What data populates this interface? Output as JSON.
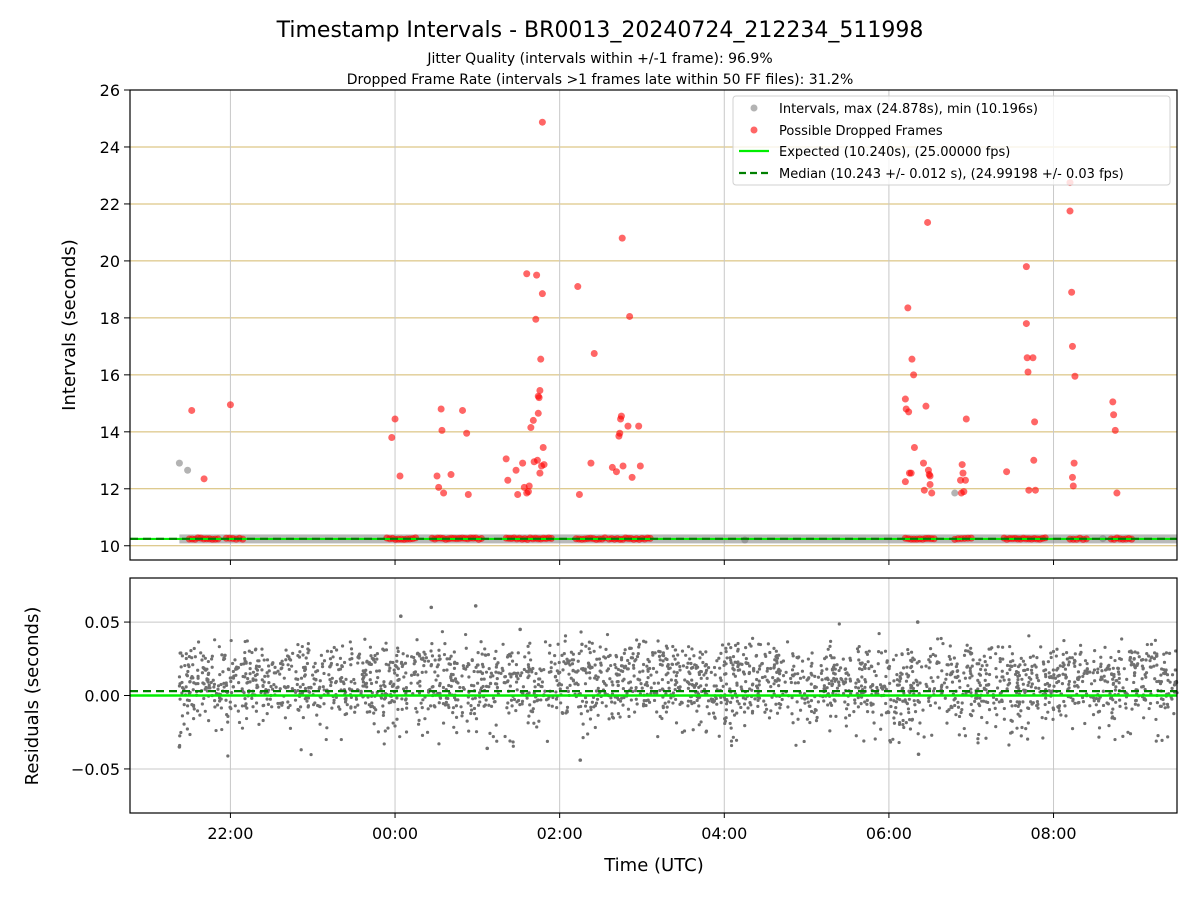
{
  "figure": {
    "title": "Timestamp Intervals - BR0013_20240724_212234_511998",
    "subtitle_1": "Jitter Quality (intervals within +/-1 frame): 96.9%",
    "subtitle_2": "Dropped Frame Rate (intervals >1 frames late within 50 FF files): 31.2%"
  },
  "chart_data": [
    {
      "type": "scatter",
      "ylabel": "Intervals (seconds)",
      "xlabel": "",
      "ylim": [
        9.5,
        26
      ],
      "yticks": [
        10,
        12,
        14,
        16,
        18,
        20,
        22,
        24,
        26
      ],
      "xlim_hours": [
        -3.22,
        9.5
      ],
      "xticks": [
        {
          "h": -2,
          "label": "22:00"
        },
        {
          "h": 0,
          "label": "00:00"
        },
        {
          "h": 2,
          "label": "02:00"
        },
        {
          "h": 4,
          "label": "04:00"
        },
        {
          "h": 6,
          "label": "06:00"
        },
        {
          "h": 8,
          "label": "08:00"
        }
      ],
      "grid": true,
      "legend_position": "top-right",
      "colors": {
        "intervals": "#808080",
        "dropped": "#ff0000",
        "expected": "#00ee00",
        "median": "#008000",
        "hgrid": "#d4b96a",
        "vgrid": "#c8c8c8"
      },
      "series": [
        {
          "name": "Intervals, max (24.878s), min (10.196s)",
          "kind": "points",
          "band": {
            "from_h": -2.62,
            "to_h": 9.5,
            "y": 10.24
          },
          "points": [
            [
              -2.62,
              12.9
            ],
            [
              -2.52,
              12.65
            ],
            [
              4.25,
              10.2
            ],
            [
              6.8,
              11.85
            ],
            [
              8.6,
              10.25
            ]
          ]
        },
        {
          "name": "Possible Dropped Frames",
          "kind": "points",
          "cluster_ranges_h": [
            [
              -2.5,
              -2.15
            ],
            [
              -2.05,
              -1.85
            ],
            [
              -0.1,
              0.25
            ],
            [
              0.45,
              1.05
            ],
            [
              1.35,
              1.9
            ],
            [
              2.2,
              2.55
            ],
            [
              2.6,
              3.1
            ],
            [
              6.2,
              6.55
            ],
            [
              6.8,
              7.0
            ],
            [
              7.4,
              7.9
            ],
            [
              8.2,
              8.4
            ],
            [
              8.7,
              8.95
            ]
          ],
          "cluster_y": 10.25,
          "points": [
            [
              -2.47,
              14.75
            ],
            [
              -2.32,
              12.35
            ],
            [
              -2.0,
              14.95
            ],
            [
              -0.04,
              13.8
            ],
            [
              0.0,
              14.45
            ],
            [
              0.06,
              12.45
            ],
            [
              0.51,
              12.45
            ],
            [
              0.53,
              12.05
            ],
            [
              0.56,
              14.8
            ],
            [
              0.57,
              14.05
            ],
            [
              0.59,
              11.85
            ],
            [
              0.68,
              12.5
            ],
            [
              0.82,
              14.75
            ],
            [
              0.87,
              13.95
            ],
            [
              0.89,
              11.8
            ],
            [
              1.35,
              13.05
            ],
            [
              1.37,
              12.3
            ],
            [
              1.47,
              12.65
            ],
            [
              1.49,
              11.8
            ],
            [
              1.55,
              12.9
            ],
            [
              1.57,
              12.05
            ],
            [
              1.6,
              11.85
            ],
            [
              1.62,
              11.9
            ],
            [
              1.63,
              12.1
            ],
            [
              1.6,
              19.55
            ],
            [
              1.65,
              14.15
            ],
            [
              1.68,
              14.4
            ],
            [
              1.69,
              12.95
            ],
            [
              1.71,
              17.95
            ],
            [
              1.72,
              19.5
            ],
            [
              1.74,
              14.65
            ],
            [
              1.74,
              15.25
            ],
            [
              1.76,
              15.45
            ],
            [
              1.76,
              12.55
            ],
            [
              1.78,
              12.8
            ],
            [
              1.79,
              24.87
            ],
            [
              1.79,
              18.85
            ],
            [
              1.8,
              13.45
            ],
            [
              1.81,
              12.85
            ],
            [
              1.77,
              16.55
            ],
            [
              1.75,
              15.2
            ],
            [
              1.73,
              13.0
            ],
            [
              2.22,
              19.1
            ],
            [
              2.24,
              11.8
            ],
            [
              2.38,
              12.9
            ],
            [
              2.42,
              16.75
            ],
            [
              2.64,
              12.75
            ],
            [
              2.69,
              12.6
            ],
            [
              2.76,
              20.8
            ],
            [
              2.72,
              13.85
            ],
            [
              2.74,
              14.45
            ],
            [
              2.75,
              14.55
            ],
            [
              2.73,
              13.95
            ],
            [
              2.77,
              12.8
            ],
            [
              2.83,
              14.2
            ],
            [
              2.85,
              18.05
            ],
            [
              2.88,
              12.4
            ],
            [
              2.96,
              14.2
            ],
            [
              2.98,
              12.8
            ],
            [
              6.2,
              12.25
            ],
            [
              6.2,
              15.15
            ],
            [
              6.21,
              14.8
            ],
            [
              6.23,
              18.35
            ],
            [
              6.24,
              14.7
            ],
            [
              6.25,
              12.55
            ],
            [
              6.27,
              12.55
            ],
            [
              6.28,
              16.55
            ],
            [
              6.3,
              16.0
            ],
            [
              6.31,
              13.45
            ],
            [
              6.42,
              12.9
            ],
            [
              6.43,
              11.95
            ],
            [
              6.45,
              14.9
            ],
            [
              6.47,
              21.35
            ],
            [
              6.48,
              12.65
            ],
            [
              6.49,
              12.5
            ],
            [
              6.5,
              12.15
            ],
            [
              6.52,
              11.85
            ],
            [
              6.5,
              12.45
            ],
            [
              6.87,
              12.3
            ],
            [
              6.88,
              11.85
            ],
            [
              6.89,
              12.85
            ],
            [
              6.9,
              12.55
            ],
            [
              6.91,
              11.9
            ],
            [
              6.93,
              12.3
            ],
            [
              6.94,
              14.45
            ],
            [
              7.43,
              12.6
            ],
            [
              7.67,
              19.8
            ],
            [
              7.67,
              17.8
            ],
            [
              7.68,
              16.6
            ],
            [
              7.69,
              16.1
            ],
            [
              7.7,
              11.95
            ],
            [
              7.75,
              16.6
            ],
            [
              7.76,
              13.0
            ],
            [
              7.77,
              14.35
            ],
            [
              7.78,
              11.95
            ],
            [
              8.2,
              21.75
            ],
            [
              8.2,
              22.75
            ],
            [
              8.22,
              18.9
            ],
            [
              8.23,
              12.4
            ],
            [
              8.23,
              17.0
            ],
            [
              8.24,
              12.1
            ],
            [
              8.25,
              12.9
            ],
            [
              8.26,
              15.95
            ],
            [
              8.72,
              15.05
            ],
            [
              8.73,
              14.6
            ],
            [
              8.75,
              14.05
            ],
            [
              8.77,
              11.85
            ]
          ]
        },
        {
          "name": "Expected (10.240s), (25.00000 fps)",
          "kind": "hline",
          "y": 10.24
        },
        {
          "name": "Median (10.243 +/- 0.012 s), (24.99198 +/- 0.03 fps)",
          "kind": "hline-dashed",
          "y": 10.243
        }
      ]
    },
    {
      "type": "scatter",
      "ylabel": "Residuals (seconds)",
      "xlabel": "Time (UTC)",
      "ylim": [
        -0.08,
        0.08
      ],
      "yticks": [
        {
          "v": 0.05,
          "label": "0.05"
        },
        {
          "v": 0.0,
          "label": "0.00"
        },
        {
          "v": -0.05,
          "label": "−0.05"
        }
      ],
      "grid": true,
      "x_range_h": [
        -2.62,
        9.5
      ],
      "residual_bands": [
        0.02,
        0.0,
        -0.02
      ],
      "residual_spread": 0.008,
      "residual_count": 2600,
      "outliers": [
        [
          -2.62,
          -0.035
        ],
        [
          0.07,
          0.054
        ],
        [
          0.44,
          0.06
        ],
        [
          0.98,
          0.061
        ],
        [
          1.52,
          0.045
        ],
        [
          2.25,
          -0.044
        ],
        [
          6.35,
          0.05
        ],
        [
          6.36,
          -0.04
        ],
        [
          1.12,
          -0.036
        ]
      ],
      "expected_residual": 0.0,
      "median_residual": 0.003
    }
  ]
}
